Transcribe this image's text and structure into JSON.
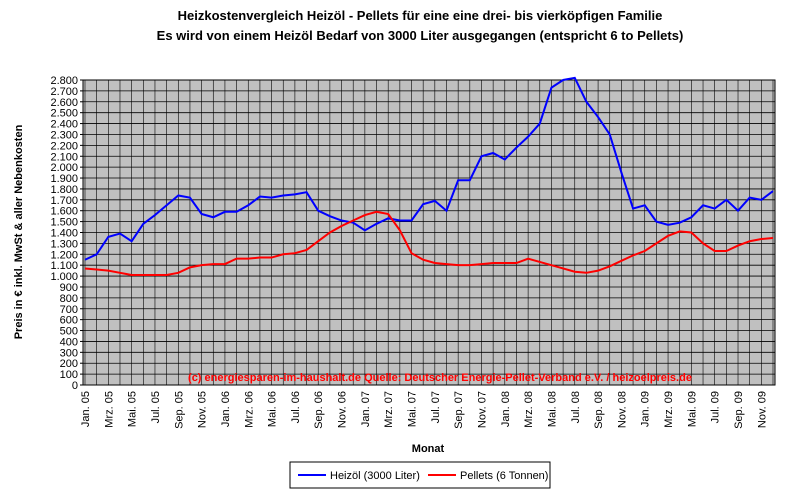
{
  "chart_data": {
    "type": "line",
    "title": "Heizkostenvergleich Heizöl - Pellets für eine eine drei- bis vierköpfigen Familie",
    "subtitle": "Es wird von einem Heizöl Bedarf von 3000 Liter ausgegangen (entspricht 6 to Pellets)",
    "xlabel": "Monat",
    "ylabel": "Preis in € inkl. MwSt & aller Nebenkosten",
    "annotation": "(c) energiesparen-im-haushalt.de Quelle: Deutscher Energie-Pellet-Verband e.V. / heizoelpreis.de",
    "categories": [
      "Jan. 05",
      null,
      "Mrz. 05",
      null,
      "Mai. 05",
      null,
      "Jul. 05",
      null,
      "Sep. 05",
      null,
      "Nov. 05",
      null,
      "Jan. 06",
      null,
      "Mrz. 06",
      null,
      "Mai. 06",
      null,
      "Jul. 06",
      null,
      "Sep. 06",
      null,
      "Nov. 06",
      null,
      "Jan. 07",
      null,
      "Mrz. 07",
      null,
      "Mai. 07",
      null,
      "Jul. 07",
      null,
      "Sep. 07",
      null,
      "Nov. 07",
      null,
      "Jan. 08",
      null,
      "Mrz. 08",
      null,
      "Mai. 08",
      null,
      "Jul. 08",
      null,
      "Sep. 08",
      null,
      "Nov. 08",
      null,
      "Jan. 09",
      null,
      "Mrz. 09",
      null,
      "Mai. 09",
      null,
      "Jul. 09",
      null,
      "Sep. 09",
      null,
      "Nov. 09",
      null
    ],
    "series": [
      {
        "name": "Heizöl (3000 Liter)",
        "color": "#0000ff",
        "values": [
          1150,
          1200,
          1360,
          1390,
          1320,
          1480,
          1560,
          1650,
          1740,
          1720,
          1570,
          1540,
          1590,
          1590,
          1650,
          1730,
          1720,
          1740,
          1750,
          1770,
          1600,
          1550,
          1510,
          1490,
          1420,
          1480,
          1530,
          1510,
          1510,
          1660,
          1690,
          1600,
          1880,
          1880,
          2100,
          2130,
          2070,
          2180,
          2280,
          2400,
          2730,
          2800,
          2820,
          2600,
          2460,
          2300,
          1950,
          1620,
          1650,
          1500,
          1470,
          1490,
          1540,
          1650,
          1620,
          1700,
          1600,
          1720,
          1700,
          1780
        ]
      },
      {
        "name": "Pellets (6 Tonnen)",
        "color": "#ff0000",
        "values": [
          1070,
          1060,
          1050,
          1030,
          1010,
          1010,
          1010,
          1010,
          1030,
          1080,
          1100,
          1110,
          1110,
          1160,
          1160,
          1170,
          1170,
          1200,
          1210,
          1240,
          1320,
          1400,
          1460,
          1510,
          1560,
          1590,
          1570,
          1420,
          1210,
          1150,
          1120,
          1110,
          1100,
          1100,
          1110,
          1120,
          1120,
          1120,
          1160,
          1130,
          1100,
          1070,
          1040,
          1030,
          1050,
          1090,
          1140,
          1190,
          1230,
          1300,
          1370,
          1410,
          1400,
          1300,
          1230,
          1230,
          1280,
          1320,
          1340,
          1350
        ]
      }
    ],
    "ylim": [
      0,
      2800
    ],
    "yticks": [
      0,
      100,
      200,
      300,
      400,
      500,
      600,
      700,
      800,
      900,
      {
        "value": 1000,
        "label": "1.000"
      },
      {
        "value": 1100,
        "label": "1.100"
      },
      {
        "value": 1200,
        "label": "1.200"
      },
      {
        "value": 1300,
        "label": "1.300"
      },
      {
        "value": 1400,
        "label": "1.400"
      },
      {
        "value": 1500,
        "label": "1.500"
      },
      {
        "value": 1600,
        "label": "1.600"
      },
      {
        "value": 1700,
        "label": "1.700"
      },
      {
        "value": 1800,
        "label": "1.800"
      },
      {
        "value": 1900,
        "label": "1.900"
      },
      {
        "value": 2000,
        "label": "2.000"
      },
      {
        "value": 2100,
        "label": "2.100"
      },
      {
        "value": 2200,
        "label": "2.200"
      },
      {
        "value": 2300,
        "label": "2.300"
      },
      {
        "value": 2400,
        "label": "2.400"
      },
      {
        "value": 2500,
        "label": "2.500"
      },
      {
        "value": 2600,
        "label": "2.600"
      },
      {
        "value": 2700,
        "label": "2.700"
      },
      {
        "value": 2800,
        "label": "2.800"
      }
    ],
    "grid": true,
    "legend": "bottom"
  }
}
